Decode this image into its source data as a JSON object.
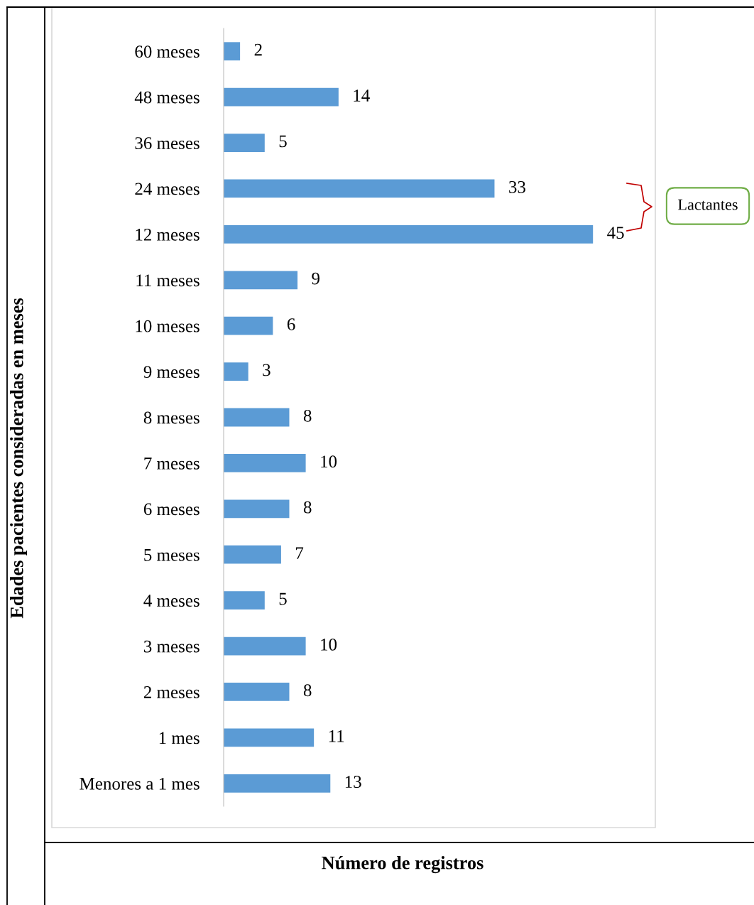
{
  "chart_data": {
    "type": "bar",
    "orientation": "horizontal",
    "xlabel": "Número de registros",
    "ylabel": "Edades pacientes consideradas en meses",
    "categories": [
      "60 meses",
      "48 meses",
      "36 meses",
      "24 meses",
      "12 meses",
      "11 meses",
      "10 meses",
      "9 meses",
      "8 meses",
      "7 meses",
      "6 meses",
      "5 meses",
      "4 meses",
      "3 meses",
      "2 meses",
      "1 mes",
      "Menores a 1 mes"
    ],
    "values": [
      2,
      14,
      5,
      33,
      45,
      9,
      6,
      3,
      8,
      10,
      8,
      7,
      5,
      10,
      8,
      11,
      13
    ],
    "color": "#5b9bd5",
    "data_labels": true,
    "grid": false,
    "tick_labels": "y",
    "annotations": [
      "Lactantes"
    ]
  }
}
